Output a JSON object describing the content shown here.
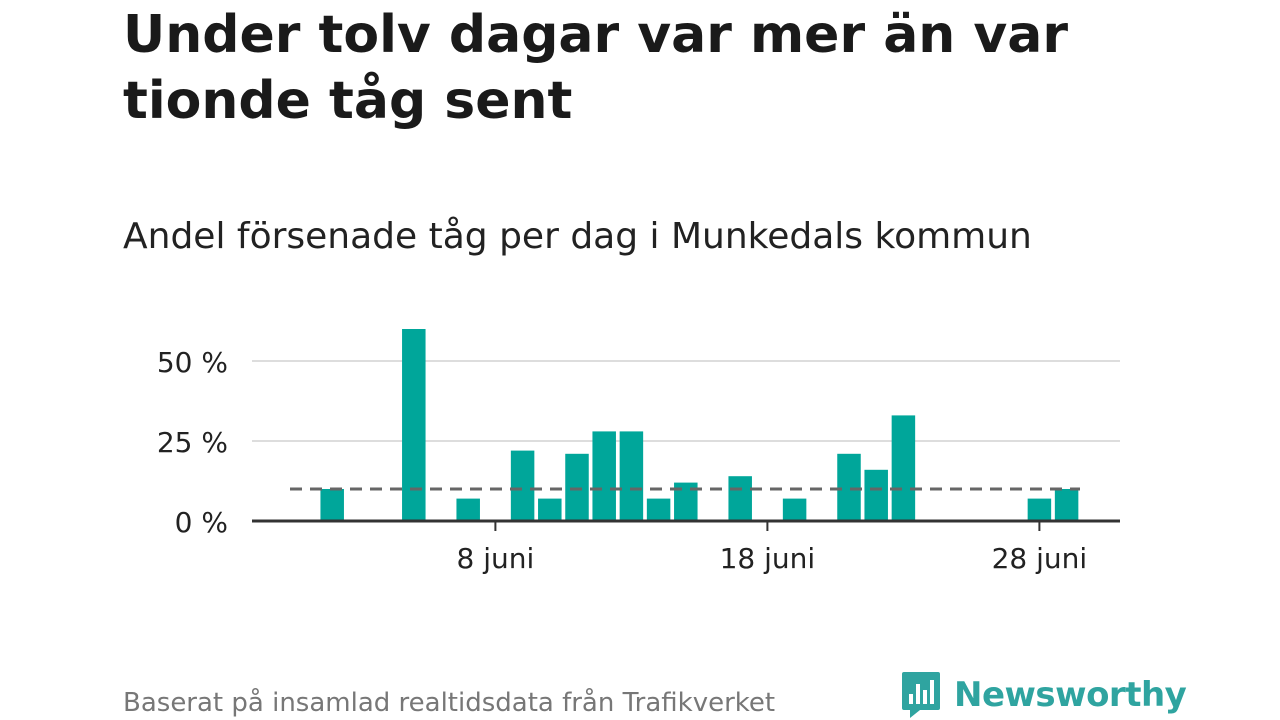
{
  "title": "Under tolv dagar var mer än var tionde tåg sent",
  "subtitle": "Andel försenade tåg per dag i Munkedals kommun",
  "footnote": "Baserat på insamlad realtidsdata från Trafikverket",
  "brand": {
    "name": "Newsworthy",
    "icon": "newsworthy-logo-icon",
    "color": "#2fa4a0"
  },
  "colors": {
    "bar": "#00a69a",
    "grid": "#dddddd",
    "axis": "#333333",
    "reference": "#666666",
    "tick_text": "#222222"
  },
  "chart_data": {
    "type": "bar",
    "x": [
      1,
      2,
      3,
      4,
      5,
      6,
      7,
      8,
      9,
      10,
      11,
      12,
      13,
      14,
      15,
      16,
      17,
      18,
      19,
      20,
      21,
      22,
      23,
      24,
      25,
      26,
      27,
      28,
      29
    ],
    "values": [
      0,
      10,
      0,
      0,
      60,
      0,
      7,
      0,
      22,
      7,
      21,
      28,
      28,
      7,
      12,
      0,
      14,
      0,
      7,
      0,
      21,
      16,
      33,
      0,
      0,
      0,
      0,
      7,
      10
    ],
    "x_ticks": [
      {
        "x": 8,
        "label": "8 juni"
      },
      {
        "x": 18,
        "label": "18 juni"
      },
      {
        "x": 28,
        "label": "28 juni"
      }
    ],
    "y_ticks": [
      {
        "y": 0,
        "label": "0 %"
      },
      {
        "y": 25,
        "label": "25 %"
      },
      {
        "y": 50,
        "label": "50 %"
      }
    ],
    "ylim": [
      0,
      60
    ],
    "reference_line": 10,
    "grid": true,
    "xlabel": "",
    "ylabel": ""
  }
}
